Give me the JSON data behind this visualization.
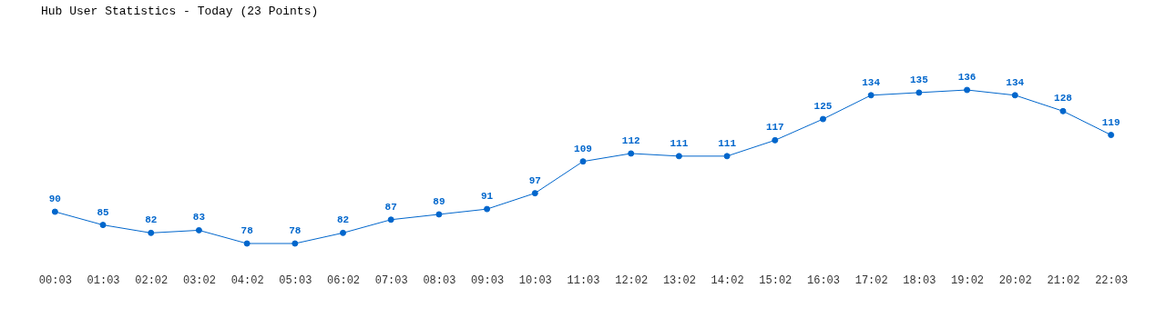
{
  "chart_data": {
    "type": "line",
    "title": "Hub User Statistics - Today (23 Points)",
    "categories": [
      "00:03",
      "01:03",
      "02:02",
      "03:02",
      "04:02",
      "05:03",
      "06:02",
      "07:03",
      "08:03",
      "09:03",
      "10:03",
      "11:03",
      "12:02",
      "13:02",
      "14:02",
      "15:02",
      "16:03",
      "17:02",
      "18:03",
      "19:02",
      "20:02",
      "21:02",
      "22:03"
    ],
    "values": [
      90,
      85,
      82,
      83,
      78,
      78,
      82,
      87,
      89,
      91,
      97,
      109,
      112,
      111,
      111,
      117,
      125,
      134,
      135,
      136,
      134,
      128,
      119
    ],
    "color": "#0066cc",
    "data_labels": true,
    "marker": "circle",
    "line_style": "solid",
    "tick_labels": "x"
  }
}
